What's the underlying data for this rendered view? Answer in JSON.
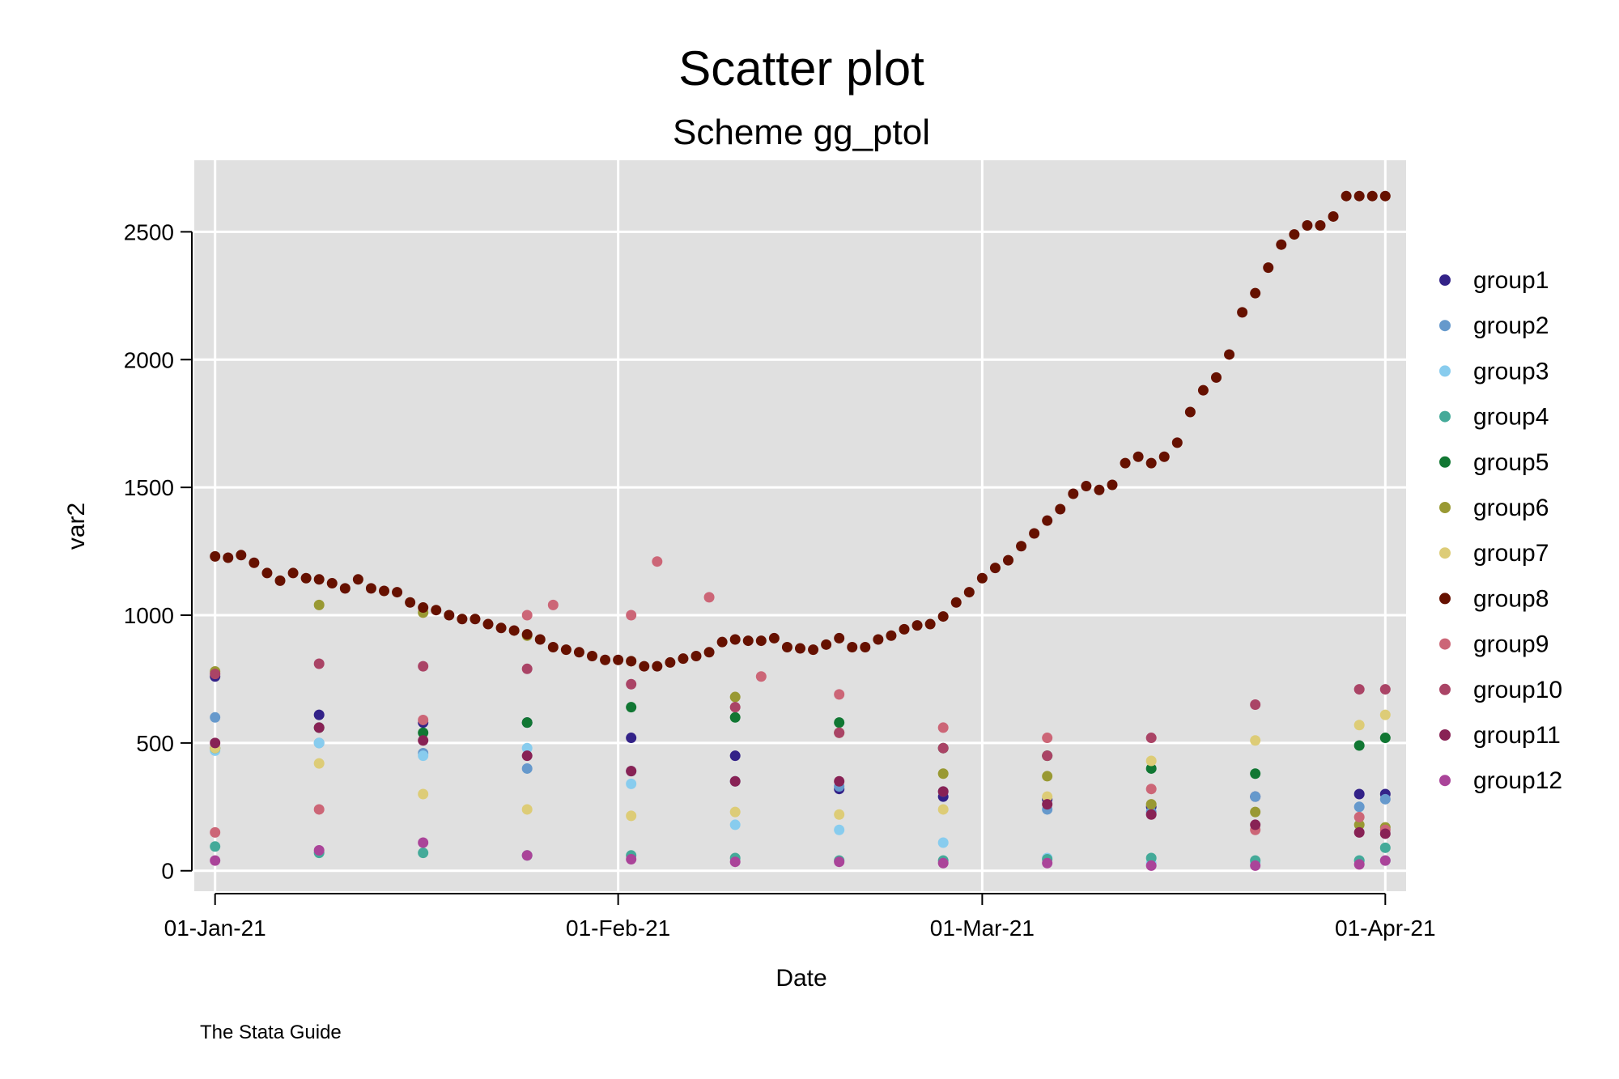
{
  "chart_data": {
    "type": "scatter",
    "title": "Scatter plot",
    "subtitle": "Scheme gg_ptol",
    "xlabel": "Date",
    "ylabel": "var2",
    "note": "The Stata Guide",
    "x_ticks": [
      {
        "label": "01-Jan-21",
        "day": 0
      },
      {
        "label": "01-Feb-21",
        "day": 31
      },
      {
        "label": "01-Mar-21",
        "day": 59
      },
      {
        "label": "01-Apr-21",
        "day": 90
      }
    ],
    "xlim": [
      -1.6,
      91.6
    ],
    "ylim": [
      -80,
      2780
    ],
    "y_ticks": [
      0,
      500,
      1000,
      1500,
      2000,
      2500
    ],
    "y_tick_labels": [
      "0",
      "500",
      "1000",
      "1500",
      "2000",
      "2500"
    ],
    "grid": true,
    "legend_position": "right",
    "series": [
      {
        "name": "group1",
        "color": "#332288",
        "x": [
          0,
          8,
          16,
          24,
          32,
          40,
          48,
          56,
          64,
          72,
          80,
          88,
          90
        ],
        "y": [
          760,
          610,
          580,
          580,
          520,
          450,
          320,
          290,
          280,
          250,
          290,
          300,
          300
        ]
      },
      {
        "name": "group2",
        "color": "#6699CC",
        "x": [
          0,
          8,
          16,
          24,
          32,
          40,
          48,
          56,
          64,
          72,
          80,
          88,
          90
        ],
        "y": [
          600,
          500,
          460,
          400,
          390,
          350,
          330,
          310,
          240,
          230,
          290,
          250,
          280
        ]
      },
      {
        "name": "group3",
        "color": "#88CCEE",
        "x": [
          0,
          8,
          16,
          24,
          32,
          40,
          48,
          56,
          64,
          72,
          80,
          88,
          90
        ],
        "y": [
          470,
          500,
          450,
          480,
          340,
          180,
          160,
          110,
          50,
          30,
          30,
          40,
          40
        ]
      },
      {
        "name": "group4",
        "color": "#44AA99",
        "x": [
          0,
          8,
          16,
          24,
          32,
          40,
          48,
          56,
          64,
          72,
          80,
          88,
          90
        ],
        "y": [
          95,
          70,
          70,
          60,
          60,
          50,
          40,
          40,
          45,
          50,
          40,
          40,
          90
        ]
      },
      {
        "name": "group5",
        "color": "#117733",
        "x": [
          0,
          8,
          16,
          24,
          32,
          40,
          48,
          56,
          64,
          72,
          80,
          88,
          90
        ],
        "y": [
          480,
          560,
          540,
          580,
          640,
          600,
          580,
          480,
          450,
          400,
          380,
          490,
          520
        ]
      },
      {
        "name": "group6",
        "color": "#999933",
        "x": [
          0,
          8,
          16,
          24,
          32,
          40,
          48,
          56,
          64,
          72,
          80,
          88,
          90
        ],
        "y": [
          780,
          1040,
          1010,
          920,
          820,
          680,
          540,
          380,
          370,
          260,
          230,
          180,
          170
        ]
      },
      {
        "name": "group7",
        "color": "#DDCC77",
        "x": [
          0,
          8,
          16,
          24,
          32,
          40,
          48,
          56,
          64,
          72,
          80,
          88,
          90
        ],
        "y": [
          480,
          420,
          300,
          240,
          215,
          230,
          220,
          240,
          290,
          430,
          510,
          570,
          610
        ]
      },
      {
        "name": "group8",
        "color": "#661100",
        "x": [
          0,
          1,
          2,
          3,
          4,
          5,
          6,
          7,
          8,
          9,
          10,
          11,
          12,
          13,
          14,
          15,
          16,
          17,
          18,
          19,
          20,
          21,
          22,
          23,
          24,
          25,
          26,
          27,
          28,
          29,
          30,
          31,
          32,
          33,
          34,
          35,
          36,
          37,
          38,
          39,
          40,
          41,
          42,
          43,
          44,
          45,
          46,
          47,
          48,
          49,
          50,
          51,
          52,
          53,
          54,
          55,
          56,
          57,
          58,
          59,
          60,
          61,
          62,
          63,
          64,
          65,
          66,
          67,
          68,
          69,
          70,
          71,
          72,
          73,
          74,
          75,
          76,
          77,
          78,
          79,
          80,
          81,
          82,
          83,
          84,
          85,
          86,
          87,
          88,
          89,
          90
        ],
        "y": [
          1230,
          1225,
          1235,
          1205,
          1165,
          1135,
          1165,
          1145,
          1140,
          1125,
          1105,
          1140,
          1105,
          1095,
          1090,
          1050,
          1030,
          1020,
          1000,
          985,
          985,
          965,
          950,
          940,
          925,
          905,
          875,
          865,
          855,
          840,
          825,
          825,
          820,
          800,
          800,
          815,
          830,
          840,
          855,
          895,
          905,
          900,
          900,
          910,
          875,
          870,
          865,
          885,
          910,
          875,
          875,
          905,
          920,
          945,
          960,
          965,
          995,
          1050,
          1090,
          1145,
          1185,
          1215,
          1270,
          1320,
          1370,
          1415,
          1475,
          1505,
          1490,
          1510,
          1595,
          1620,
          1595,
          1620,
          1675,
          1795,
          1880,
          1930,
          2020,
          2185,
          2260,
          2360,
          2450,
          2490,
          2525,
          2525,
          2560,
          2640,
          2640,
          2640,
          2640
        ]
      },
      {
        "name": "group9",
        "color": "#CC6677",
        "x": [
          0,
          8,
          16,
          24,
          26,
          32,
          34,
          38,
          42,
          48,
          56,
          64,
          72,
          80,
          88,
          90
        ],
        "y": [
          150,
          240,
          590,
          1000,
          1040,
          1000,
          1210,
          1070,
          760,
          690,
          560,
          520,
          320,
          160,
          210,
          160
        ]
      },
      {
        "name": "group10",
        "color": "#AA4466",
        "x": [
          0,
          8,
          16,
          24,
          32,
          40,
          48,
          56,
          64,
          72,
          80,
          88,
          90
        ],
        "y": [
          770,
          810,
          800,
          790,
          730,
          640,
          540,
          480,
          450,
          520,
          650,
          710,
          710
        ]
      },
      {
        "name": "group11",
        "color": "#882255",
        "x": [
          0,
          8,
          16,
          24,
          32,
          40,
          48,
          56,
          64,
          72,
          80,
          88,
          90
        ],
        "y": [
          500,
          560,
          510,
          450,
          390,
          350,
          350,
          310,
          260,
          220,
          180,
          150,
          145
        ]
      },
      {
        "name": "group12",
        "color": "#AA4499",
        "x": [
          0,
          8,
          16,
          24,
          32,
          40,
          48,
          56,
          64,
          72,
          80,
          88,
          90
        ],
        "y": [
          40,
          80,
          110,
          60,
          45,
          35,
          35,
          30,
          30,
          20,
          20,
          25,
          40
        ]
      }
    ]
  }
}
